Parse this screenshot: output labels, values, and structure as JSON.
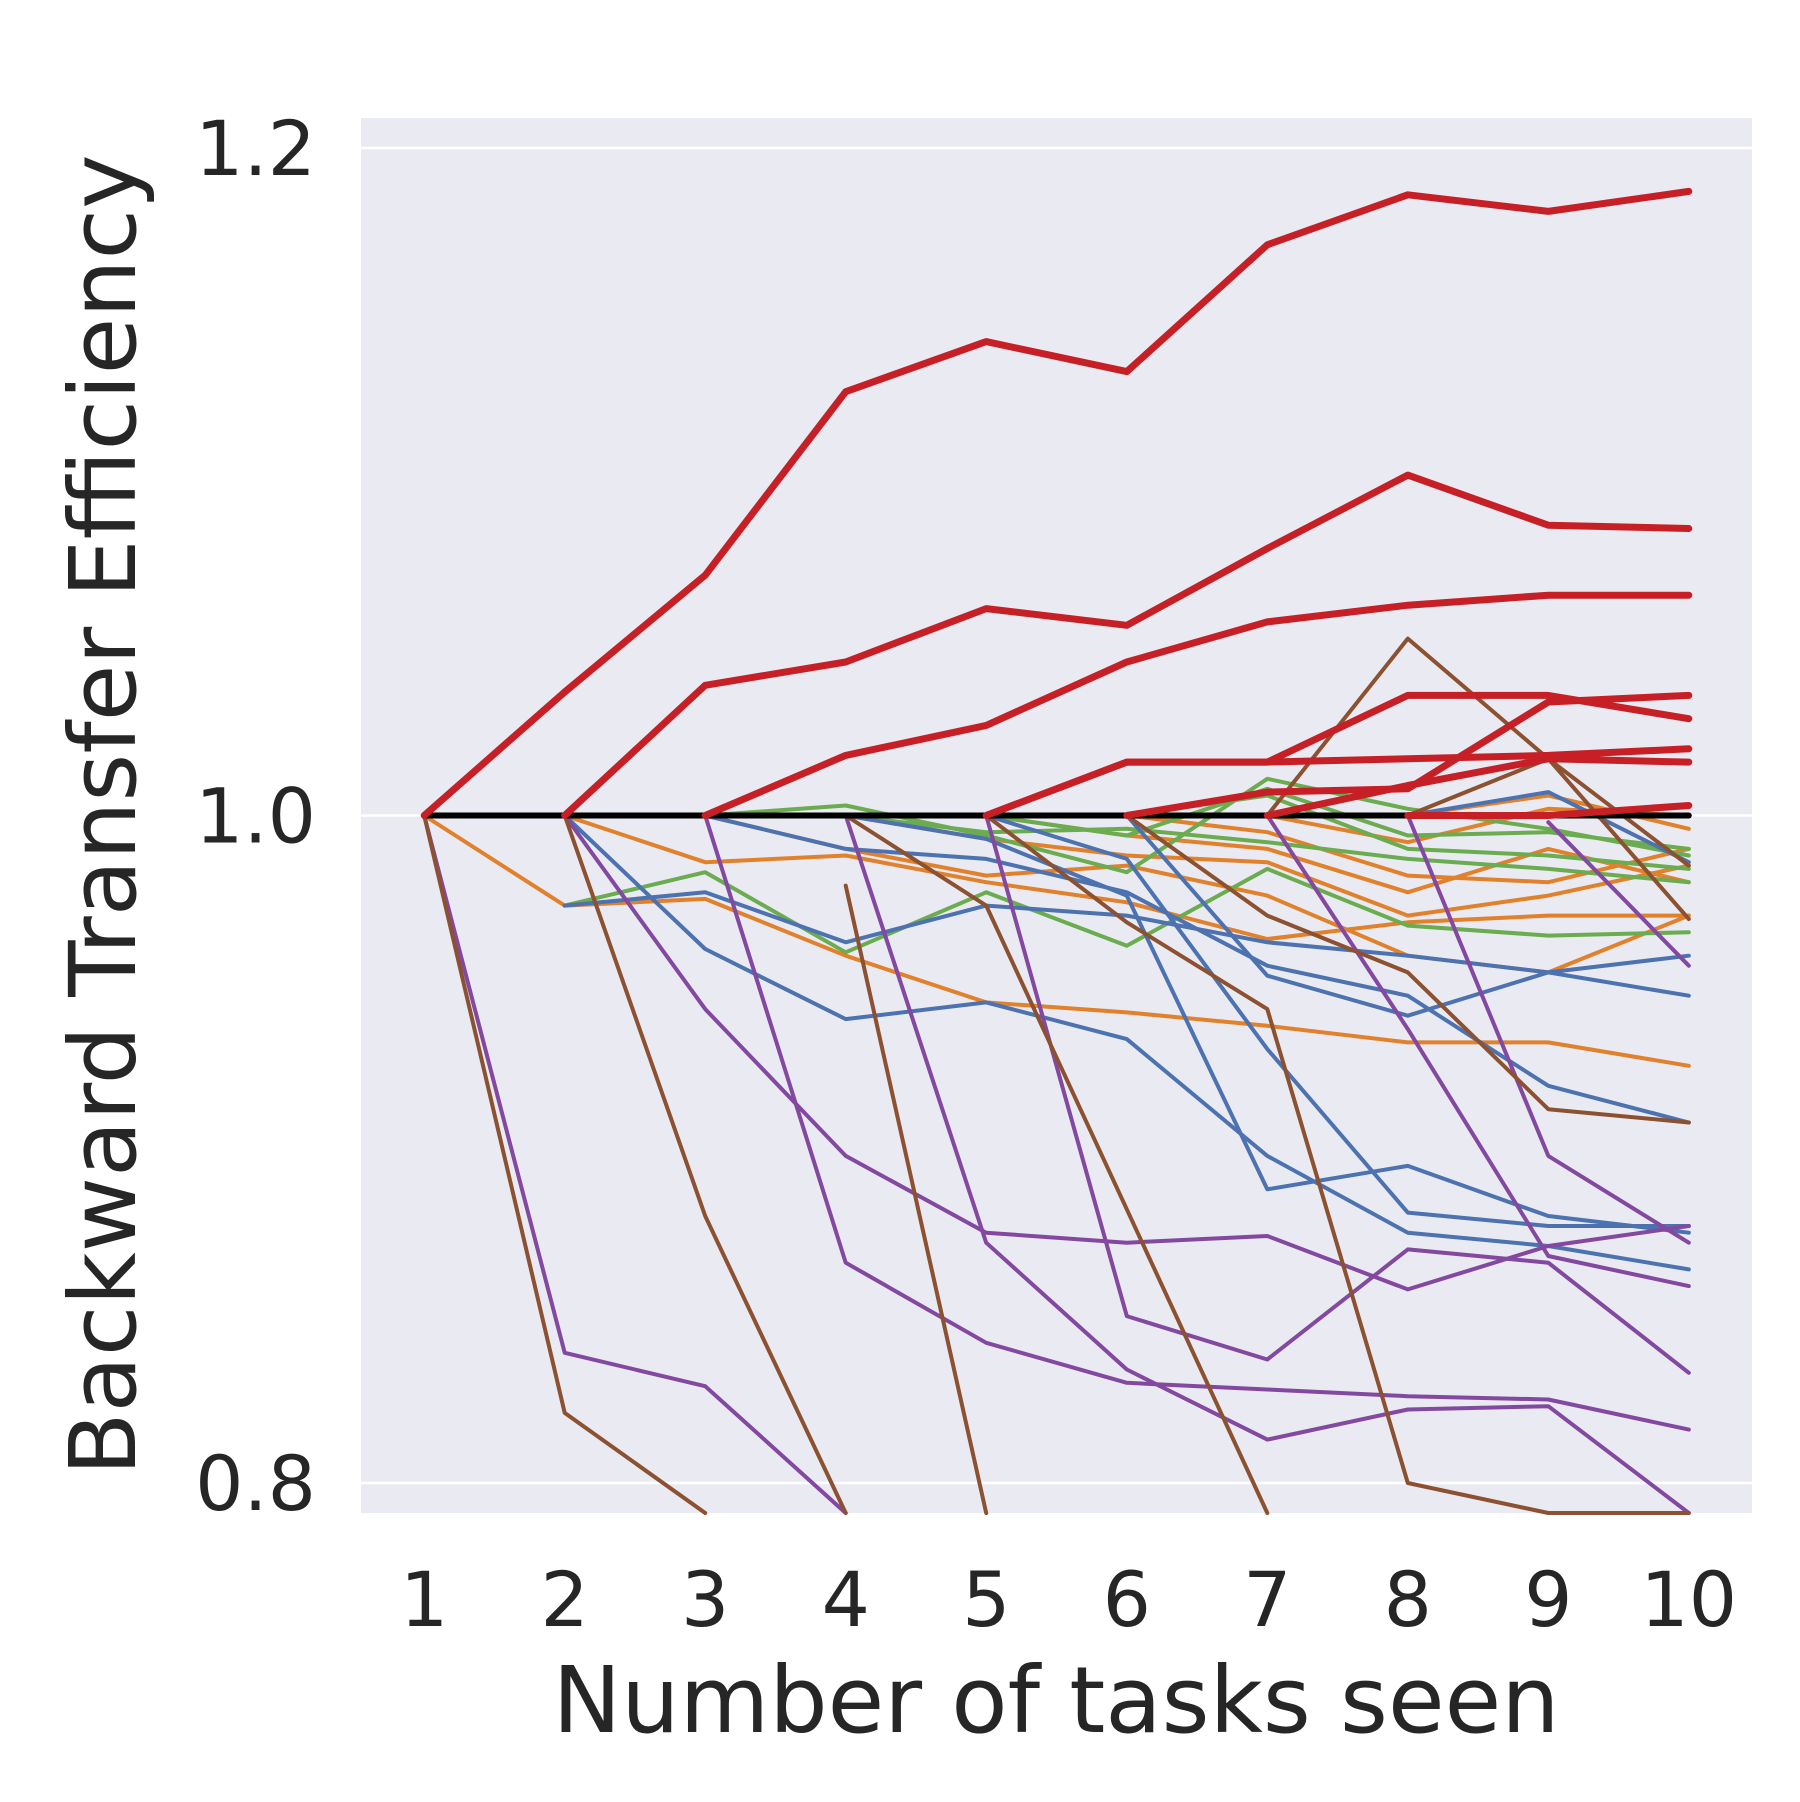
{
  "chart_data": {
    "type": "line",
    "title": "",
    "xlabel": "Number of tasks seen",
    "ylabel": "Backward Transfer Efficiency",
    "x_ticks": [
      "1",
      "2",
      "3",
      "4",
      "5",
      "6",
      "7",
      "8",
      "9",
      "10"
    ],
    "y_ticks": [
      "0.8",
      "1.0",
      "1.2"
    ],
    "xlim": [
      0.55,
      10.45
    ],
    "ylim": [
      0.791,
      1.209
    ],
    "grid": true,
    "background": "#eaeaf2",
    "grid_color": "#ffffff",
    "colors": {
      "red": "#c62026",
      "orange": "#e1812c",
      "green": "#6aac4f",
      "blue": "#4c72b0",
      "purple": "#8348a0",
      "brown": "#8c5130",
      "black": "#000000"
    },
    "series": [
      {
        "color": "black",
        "width": 6,
        "x": [
          1,
          10
        ],
        "y": [
          1.0,
          1.0
        ]
      },
      {
        "color": "orange",
        "width": 4,
        "x": [
          1,
          2,
          3,
          4,
          5,
          6,
          7,
          8,
          9,
          10
        ],
        "y": [
          1.0,
          0.973,
          0.975,
          0.958,
          0.944,
          0.941,
          0.937,
          0.932,
          0.932,
          0.925
        ]
      },
      {
        "color": "orange",
        "width": 4,
        "x": [
          2,
          3,
          4,
          5,
          6,
          7,
          8,
          9,
          10
        ],
        "y": [
          1.0,
          0.986,
          0.988,
          0.98,
          0.974,
          0.963,
          0.968,
          0.97,
          0.97
        ]
      },
      {
        "color": "orange",
        "width": 4,
        "x": [
          3,
          4,
          5,
          6,
          7,
          8,
          9,
          10
        ],
        "y": [
          1.0,
          0.99,
          0.982,
          0.985,
          0.976,
          0.958,
          0.953,
          0.97
        ]
      },
      {
        "color": "orange",
        "width": 4,
        "x": [
          4,
          5,
          6,
          7,
          8,
          9,
          10
        ],
        "y": [
          1.0,
          0.993,
          0.988,
          0.986,
          0.97,
          0.976,
          0.985
        ]
      },
      {
        "color": "orange",
        "width": 4,
        "x": [
          5,
          6,
          7,
          8,
          9,
          10
        ],
        "y": [
          1.0,
          0.994,
          0.99,
          0.977,
          0.99,
          0.98
        ]
      },
      {
        "color": "orange",
        "width": 4,
        "x": [
          6,
          7,
          8,
          9,
          10
        ],
        "y": [
          1.0,
          0.995,
          0.982,
          0.98,
          0.99
        ]
      },
      {
        "color": "orange",
        "width": 4,
        "x": [
          7,
          8,
          9,
          10
        ],
        "y": [
          1.0,
          0.992,
          1.002,
          1.0
        ]
      },
      {
        "color": "orange",
        "width": 4,
        "x": [
          8,
          9,
          10
        ],
        "y": [
          1.0,
          1.006,
          0.996
        ]
      },
      {
        "color": "green",
        "width": 4,
        "x": [
          2,
          3,
          4,
          5,
          6,
          7,
          8,
          9,
          10
        ],
        "y": [
          0.973,
          0.983,
          0.959,
          0.977,
          0.961,
          0.984,
          0.967,
          0.964,
          0.965
        ]
      },
      {
        "color": "green",
        "width": 4,
        "x": [
          3,
          4,
          5,
          6,
          7,
          8,
          9,
          10
        ],
        "y": [
          1.0,
          1.003,
          0.994,
          0.983,
          1.011,
          1.002,
          0.996,
          0.988
        ]
      },
      {
        "color": "green",
        "width": 4,
        "x": [
          4,
          5,
          6,
          7,
          8,
          9,
          10
        ],
        "y": [
          1.0,
          0.995,
          0.996,
          0.992,
          0.987,
          0.984,
          0.98
        ]
      },
      {
        "color": "green",
        "width": 4,
        "x": [
          5,
          6,
          7,
          8,
          9,
          10
        ],
        "y": [
          1.0,
          0.994,
          1.008,
          0.994,
          0.995,
          0.99
        ]
      },
      {
        "color": "green",
        "width": 4,
        "x": [
          6,
          7,
          8,
          9,
          10
        ],
        "y": [
          1.0,
          1.006,
          0.99,
          0.988,
          0.984
        ]
      },
      {
        "color": "blue",
        "width": 4,
        "x": [
          2,
          3,
          4,
          5,
          6,
          7,
          8,
          9,
          10
        ],
        "y": [
          1.0,
          0.96,
          0.939,
          0.944,
          0.933,
          0.898,
          0.875,
          0.871,
          0.864
        ]
      },
      {
        "color": "blue",
        "width": 4,
        "x": [
          2,
          3,
          4,
          5,
          6,
          7,
          8,
          9,
          10
        ],
        "y": [
          0.973,
          0.977,
          0.962,
          0.973,
          0.97,
          0.962,
          0.958,
          0.953,
          0.958
        ]
      },
      {
        "color": "blue",
        "width": 4,
        "x": [
          3,
          4,
          5,
          6,
          7,
          8,
          9,
          10
        ],
        "y": [
          1.0,
          0.99,
          0.987,
          0.977,
          0.955,
          0.946,
          0.919,
          0.908
        ]
      },
      {
        "color": "blue",
        "width": 4,
        "x": [
          4,
          5,
          6,
          7,
          8,
          9,
          10
        ],
        "y": [
          1.0,
          0.993,
          0.976,
          0.888,
          0.895,
          0.88,
          0.875
        ]
      },
      {
        "color": "blue",
        "width": 4,
        "x": [
          5,
          6,
          7,
          8,
          9,
          10
        ],
        "y": [
          1.0,
          0.987,
          0.93,
          0.881,
          0.877,
          0.877
        ]
      },
      {
        "color": "blue",
        "width": 4,
        "x": [
          6,
          7,
          8,
          9,
          10
        ],
        "y": [
          1.0,
          0.952,
          0.94,
          0.953,
          0.946
        ]
      },
      {
        "color": "blue",
        "width": 4,
        "x": [
          8,
          9,
          10
        ],
        "y": [
          1.0,
          1.007,
          0.986
        ]
      },
      {
        "color": "purple",
        "width": 4,
        "x": [
          1,
          2,
          3,
          4
        ],
        "y": [
          1.0,
          0.839,
          0.829,
          0.79
        ]
      },
      {
        "color": "purple",
        "width": 4,
        "x": [
          2,
          3,
          4,
          5,
          6,
          7,
          8,
          9,
          10
        ],
        "y": [
          1.0,
          0.942,
          0.898,
          0.875,
          0.872,
          0.874,
          0.858,
          0.871,
          0.877
        ]
      },
      {
        "color": "purple",
        "width": 4,
        "x": [
          3,
          4,
          5,
          6,
          7,
          8,
          9,
          10
        ],
        "y": [
          1.0,
          0.866,
          0.842,
          0.83,
          0.828,
          0.826,
          0.825,
          0.816
        ]
      },
      {
        "color": "purple",
        "width": 4,
        "x": [
          4,
          5,
          6,
          7,
          8,
          9,
          10
        ],
        "y": [
          1.0,
          0.872,
          0.834,
          0.813,
          0.822,
          0.823,
          0.79
        ]
      },
      {
        "color": "purple",
        "width": 4,
        "x": [
          5,
          6,
          7,
          8,
          9,
          10
        ],
        "y": [
          1.0,
          0.85,
          0.837,
          0.87,
          0.866,
          0.833
        ]
      },
      {
        "color": "purple",
        "width": 4,
        "x": [
          7,
          8,
          9,
          10
        ],
        "y": [
          1.0,
          0.936,
          0.868,
          0.859
        ]
      },
      {
        "color": "purple",
        "width": 4,
        "x": [
          8,
          9,
          10
        ],
        "y": [
          1.0,
          0.898,
          0.872
        ]
      },
      {
        "color": "purple",
        "width": 4,
        "x": [
          9,
          10
        ],
        "y": [
          0.998,
          0.955
        ]
      },
      {
        "color": "brown",
        "width": 4,
        "x": [
          1,
          2,
          3
        ],
        "y": [
          1.0,
          0.821,
          0.79
        ]
      },
      {
        "color": "brown",
        "width": 4,
        "x": [
          2,
          3,
          4
        ],
        "y": [
          1.0,
          0.88,
          0.79
        ]
      },
      {
        "color": "brown",
        "width": 4,
        "x": [
          4,
          5
        ],
        "y": [
          0.979,
          0.79
        ]
      },
      {
        "color": "brown",
        "width": 4,
        "x": [
          4,
          5,
          6,
          7
        ],
        "y": [
          1.0,
          0.973,
          0.882,
          0.79
        ]
      },
      {
        "color": "brown",
        "width": 4,
        "x": [
          5,
          6,
          7,
          8,
          9,
          10
        ],
        "y": [
          1.0,
          0.968,
          0.942,
          0.8,
          0.79,
          0.79
        ]
      },
      {
        "color": "brown",
        "width": 4,
        "x": [
          6,
          7,
          8,
          9,
          10
        ],
        "y": [
          1.0,
          0.97,
          0.953,
          0.912,
          0.908
        ]
      },
      {
        "color": "brown",
        "width": 4,
        "x": [
          7,
          8,
          9,
          10
        ],
        "y": [
          1.0,
          1.053,
          1.017,
          0.969
        ]
      },
      {
        "color": "brown",
        "width": 4,
        "x": [
          8,
          9,
          10
        ],
        "y": [
          1.0,
          1.017,
          0.985
        ]
      },
      {
        "color": "red",
        "width": 7,
        "x": [
          1,
          2,
          3,
          4,
          5,
          6,
          7,
          8,
          9,
          10
        ],
        "y": [
          1.0,
          1.037,
          1.072,
          1.127,
          1.142,
          1.133,
          1.171,
          1.186,
          1.181,
          1.187
        ]
      },
      {
        "color": "red",
        "width": 7,
        "x": [
          2,
          3,
          4,
          5,
          6,
          7,
          8,
          9,
          10
        ],
        "y": [
          1.0,
          1.039,
          1.046,
          1.062,
          1.057,
          1.08,
          1.102,
          1.087,
          1.086
        ]
      },
      {
        "color": "red",
        "width": 7,
        "x": [
          3,
          4,
          5,
          6,
          7,
          8,
          9,
          10
        ],
        "y": [
          1.0,
          1.018,
          1.027,
          1.046,
          1.058,
          1.063,
          1.066,
          1.066
        ]
      },
      {
        "color": "red",
        "width": 7,
        "x": [
          5,
          6,
          7,
          8,
          9,
          10
        ],
        "y": [
          1.0,
          1.016,
          1.016,
          1.036,
          1.036,
          1.029
        ]
      },
      {
        "color": "red",
        "width": 7,
        "x": [
          5,
          6,
          7,
          8,
          9,
          10
        ],
        "y": [
          1.0,
          1.016,
          1.016,
          1.017,
          1.018,
          1.02
        ]
      },
      {
        "color": "red",
        "width": 7,
        "x": [
          6,
          7,
          8,
          9,
          10
        ],
        "y": [
          1.0,
          1.007,
          1.008,
          1.034,
          1.036
        ]
      },
      {
        "color": "red",
        "width": 7,
        "x": [
          7,
          8,
          9,
          10
        ],
        "y": [
          1.0,
          1.009,
          1.017,
          1.016
        ]
      },
      {
        "color": "red",
        "width": 7,
        "x": [
          8,
          9,
          10
        ],
        "y": [
          1.0,
          1.0,
          1.003
        ]
      }
    ]
  }
}
